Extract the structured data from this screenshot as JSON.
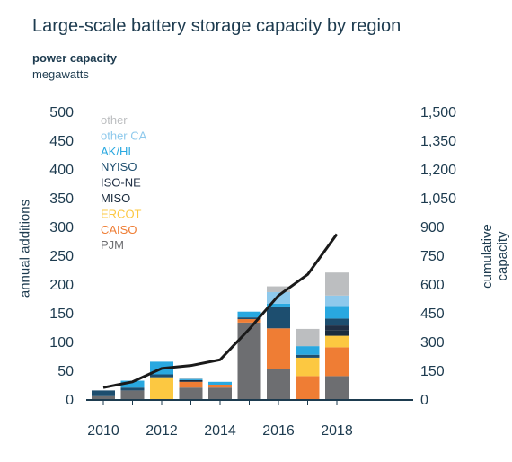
{
  "title": "Large-scale battery storage capacity by region",
  "subtitle": {
    "line1": "power capacity",
    "line2": "megawatts"
  },
  "chart_data": {
    "type": "bar",
    "title": "Large-scale battery storage capacity by region",
    "ylabel_left": "annual additions",
    "ylabel_right": "cumulative capacity",
    "ylim_left": [
      0,
      500
    ],
    "ylim_right": [
      0,
      1500
    ],
    "left_ticks": [
      "0",
      "50",
      "100",
      "150",
      "200",
      "250",
      "300",
      "350",
      "400",
      "450",
      "500"
    ],
    "right_ticks": [
      "0",
      "150",
      "300",
      "450",
      "600",
      "750",
      "900",
      "1,050",
      "1,200",
      "1,350",
      "1,500"
    ],
    "x_ticks": [
      "2010",
      "2012",
      "2014",
      "2016",
      "2018"
    ],
    "categories": [
      "2010",
      "2011",
      "2012",
      "2013",
      "2014",
      "2015",
      "2016",
      "2017",
      "2018"
    ],
    "series": [
      {
        "name": "PJM",
        "color": "#6d6e71",
        "values": [
          5,
          15,
          0,
          20,
          20,
          133,
          53,
          0,
          40
        ]
      },
      {
        "name": "CAISO",
        "color": "#ef7d34",
        "values": [
          0,
          0,
          0,
          10,
          5,
          6,
          70,
          40,
          50
        ]
      },
      {
        "name": "ERCOT",
        "color": "#fcc841",
        "values": [
          0,
          0,
          38,
          0,
          0,
          0,
          0,
          32,
          20
        ]
      },
      {
        "name": "MISO",
        "color": "#1a2b3d",
        "values": [
          0,
          0,
          0,
          3,
          0,
          0,
          0,
          0,
          10
        ]
      },
      {
        "name": "ISO-NE",
        "color": "#202f44",
        "values": [
          0,
          0,
          0,
          0,
          0,
          0,
          0,
          0,
          8
        ]
      },
      {
        "name": "NYISO",
        "color": "#1d4e6f",
        "values": [
          10,
          5,
          5,
          0,
          0,
          3,
          38,
          5,
          12
        ]
      },
      {
        "name": "AK/HI",
        "color": "#29a8e0",
        "values": [
          0,
          12,
          22,
          2,
          5,
          10,
          5,
          15,
          22
        ]
      },
      {
        "name": "other CA",
        "color": "#8ec9ec",
        "values": [
          0,
          0,
          0,
          0,
          0,
          0,
          20,
          0,
          18
        ]
      },
      {
        "name": "other",
        "color": "#bcbec0",
        "values": [
          0,
          0,
          0,
          2,
          0,
          0,
          10,
          30,
          40
        ]
      }
    ],
    "cumulative": [
      60,
      90,
      160,
      175,
      205,
      365,
      540,
      650,
      860
    ]
  }
}
